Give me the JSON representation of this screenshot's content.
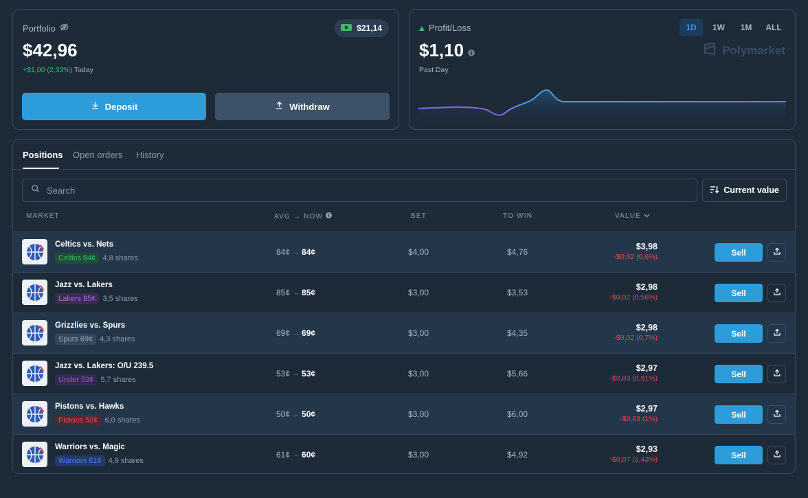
{
  "portfolio": {
    "label": "Portfolio",
    "value": "$42,96",
    "change": "+$1,00 (2,33%)",
    "change_period": "Today",
    "cash": "$21,14",
    "deposit_label": "Deposit",
    "withdraw_label": "Withdraw"
  },
  "pnl": {
    "label": "Profit/Loss",
    "value": "$1,10",
    "period": "Past Day",
    "brand": "Polymarket",
    "ranges": [
      "1D",
      "1W",
      "1M",
      "ALL"
    ],
    "active_range": "1D"
  },
  "tabs": [
    "Positions",
    "Open orders",
    "History"
  ],
  "search": {
    "placeholder": "Search"
  },
  "sort_label": "Current value",
  "columns": {
    "market": "MARKET",
    "avg_now": "AVG → NOW",
    "bet": "BET",
    "to_win": "TO WIN",
    "value": "VALUE"
  },
  "colors": {
    "accent": "#2d9cdb",
    "positive": "#3fb96b",
    "negative": "#e5484d"
  },
  "positions": [
    {
      "market": "Celtics vs. Nets",
      "outcome": "Celtics 84¢",
      "outcome_color": "#3fb96b",
      "outcome_bg": "#1f4d37",
      "shares": "4,8 shares",
      "avg": "84¢",
      "now": "84¢",
      "bet": "$4,00",
      "to_win": "$4,76",
      "value": "$3,98",
      "delta": "-$0,02 (0,6%)",
      "action": "Sell"
    },
    {
      "market": "Jazz vs. Lakers",
      "outcome": "Lakers 85¢",
      "outcome_color": "#a26bd6",
      "outcome_bg": "#3a2c55",
      "shares": "3,5 shares",
      "avg": "85¢",
      "now": "85¢",
      "bet": "$3,00",
      "to_win": "$3,53",
      "value": "$2,98",
      "delta": "-$0,02 (0,56%)",
      "action": "Sell"
    },
    {
      "market": "Grizzlies vs. Spurs",
      "outcome": "Spurs 69¢",
      "outcome_color": "#9aa8b8",
      "outcome_bg": "#34475c",
      "shares": "4,3 shares",
      "avg": "69¢",
      "now": "69¢",
      "bet": "$3,00",
      "to_win": "$4,35",
      "value": "$2,98",
      "delta": "-$0,02 (0,7%)",
      "action": "Sell"
    },
    {
      "market": "Jazz vs. Lakers: O/U 239.5",
      "outcome": "Under 53¢",
      "outcome_color": "#8f5fc9",
      "outcome_bg": "#35294f",
      "shares": "5,7 shares",
      "avg": "53¢",
      "now": "53¢",
      "bet": "$3,00",
      "to_win": "$5,66",
      "value": "$2,97",
      "delta": "-$0,03 (0,91%)",
      "action": "Sell"
    },
    {
      "market": "Pistons vs. Hawks",
      "outcome": "Pistons 50¢",
      "outcome_color": "#e5484d",
      "outcome_bg": "#4e2b34",
      "shares": "6,0 shares",
      "avg": "50¢",
      "now": "50¢",
      "bet": "$3,00",
      "to_win": "$6,00",
      "value": "$2,97",
      "delta": "-$0,03 (1%)",
      "action": "Sell"
    },
    {
      "market": "Warriors vs. Magic",
      "outcome": "Warriors 61¢",
      "outcome_color": "#4d7cf5",
      "outcome_bg": "#233a6b",
      "shares": "4,9 shares",
      "avg": "61¢",
      "now": "60¢",
      "bet": "$3,00",
      "to_win": "$4,92",
      "value": "$2,93",
      "delta": "-$0,07 (2,43%)",
      "action": "Sell"
    }
  ]
}
